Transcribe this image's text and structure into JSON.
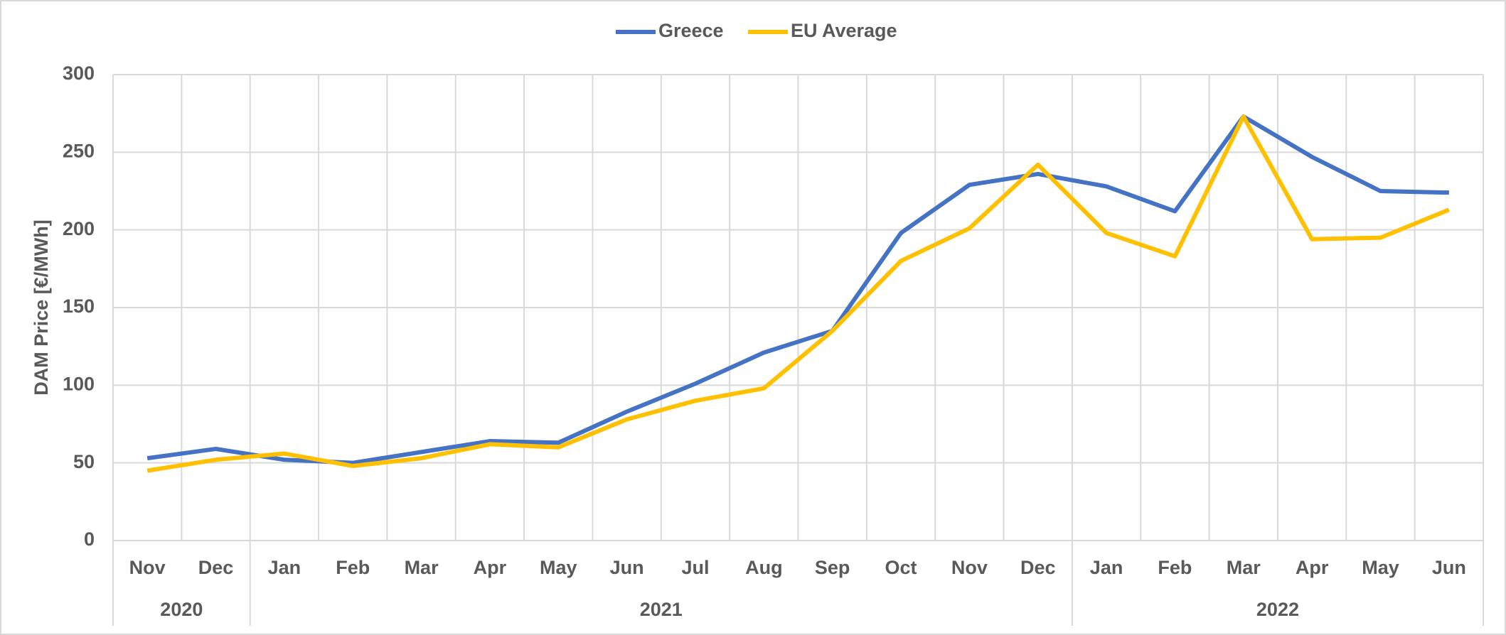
{
  "chart_data": {
    "type": "line",
    "y_label": "DAM Price [€/MWh]",
    "categories": [
      "Nov",
      "Dec",
      "Jan",
      "Feb",
      "Mar",
      "Apr",
      "May",
      "Jun",
      "Jul",
      "Aug",
      "Sep",
      "Oct",
      "Nov",
      "Dec",
      "Jan",
      "Feb",
      "Mar",
      "Apr",
      "May",
      "Jun"
    ],
    "year_groups": [
      {
        "label": "2020",
        "count": 2
      },
      {
        "label": "2021",
        "count": 12
      },
      {
        "label": "2022",
        "count": 6
      }
    ],
    "series": [
      {
        "name": "Greece",
        "color": "#4472c4",
        "values": [
          53,
          59,
          52,
          50,
          57,
          64,
          63,
          83,
          101,
          121,
          135,
          198,
          229,
          236,
          228,
          212,
          273,
          247,
          225,
          224
        ]
      },
      {
        "name": "EU Average",
        "color": "#ffc000",
        "values": [
          45,
          52,
          56,
          48,
          53,
          62,
          60,
          78,
          90,
          98,
          135,
          180,
          201,
          242,
          198,
          183,
          273,
          194,
          195,
          213
        ]
      }
    ],
    "ylim": [
      0,
      300
    ],
    "yticks": [
      0,
      50,
      100,
      150,
      200,
      250,
      300
    ],
    "grid": true,
    "legend": "top"
  }
}
